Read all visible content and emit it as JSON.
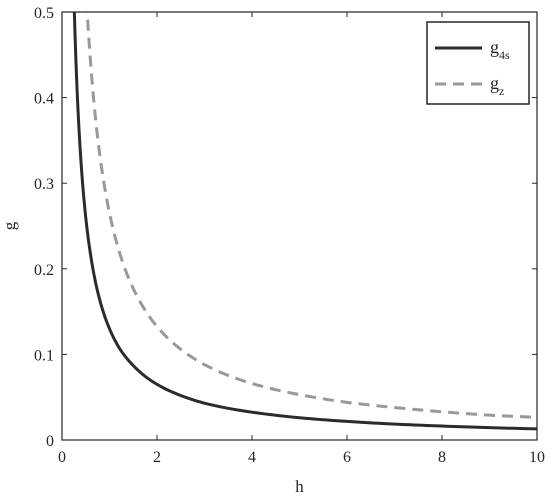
{
  "chart_data": {
    "type": "line",
    "title": "",
    "xlabel": "h",
    "ylabel": "g",
    "xlim": [
      0,
      10
    ],
    "ylim": [
      0,
      0.5
    ],
    "xticks": [
      0,
      2,
      4,
      6,
      8,
      10
    ],
    "yticks": [
      0,
      0.1,
      0.2,
      0.3,
      0.4,
      0.5
    ],
    "xtick_labels": [
      "0",
      "2",
      "4",
      "6",
      "8",
      "10"
    ],
    "ytick_labels": [
      "0",
      "0.1",
      "0.2",
      "0.3",
      "0.4",
      "0.5"
    ],
    "grid": false,
    "box": true,
    "legend_position": "top-right",
    "series": [
      {
        "name": "g4s",
        "legend_main": "g",
        "legend_sub": "4s",
        "color": "#2b2b2b",
        "style": "solid",
        "x": [
          0.26,
          0.3,
          0.4,
          0.5,
          0.6,
          0.8,
          1.0,
          1.2,
          1.5,
          2.0,
          2.5,
          3.0,
          4.0,
          5.0,
          6.0,
          7.0,
          8.0,
          9.0,
          10.0
        ],
        "y": [
          0.5,
          0.433,
          0.325,
          0.26,
          0.217,
          0.1625,
          0.13,
          0.108,
          0.087,
          0.065,
          0.052,
          0.043,
          0.0325,
          0.026,
          0.0217,
          0.0186,
          0.0163,
          0.0144,
          0.013
        ]
      },
      {
        "name": "gz",
        "legend_main": "g",
        "legend_sub": "z",
        "color": "#999999",
        "style": "dashed",
        "x": [
          0.53,
          0.6,
          0.8,
          1.0,
          1.2,
          1.5,
          2.0,
          2.5,
          3.0,
          4.0,
          5.0,
          6.0,
          7.0,
          8.0,
          9.0,
          10.0
        ],
        "y": [
          0.5,
          0.442,
          0.331,
          0.265,
          0.221,
          0.177,
          0.1325,
          0.106,
          0.088,
          0.066,
          0.053,
          0.044,
          0.038,
          0.033,
          0.029,
          0.0265
        ]
      }
    ]
  }
}
